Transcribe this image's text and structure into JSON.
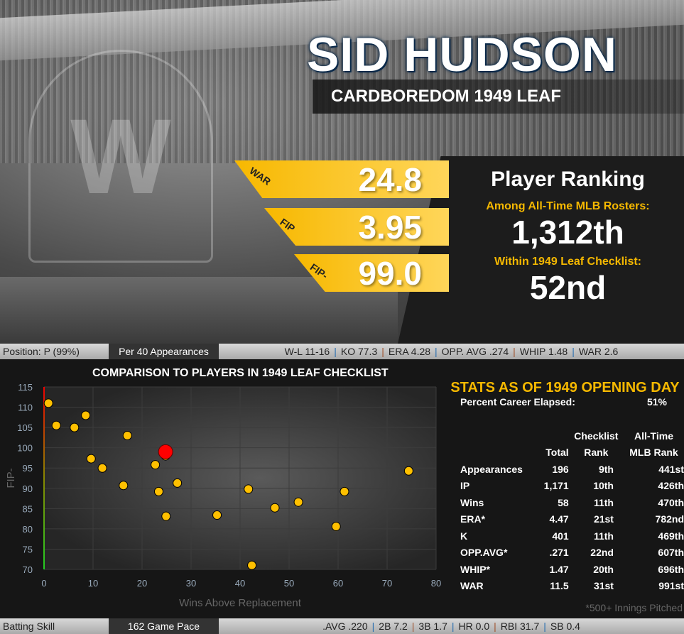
{
  "player": {
    "name": "SID HUDSON",
    "set": "CARDBOREDOM 1949 LEAF"
  },
  "key_stats": [
    {
      "label": "WAR",
      "value": "24.8"
    },
    {
      "label": "FIP",
      "value": "3.95"
    },
    {
      "label": "FIP-",
      "value": "99.0"
    }
  ],
  "ranking": {
    "title": "Player Ranking",
    "all_time_label": "Among All-Time MLB Rosters:",
    "all_time_value": "1,312th",
    "checklist_label": "Within 1949 Leaf Checklist:",
    "checklist_value": "52nd"
  },
  "pitching_bar": {
    "position": "Position: P (99%)",
    "mode": "Per 40 Appearances",
    "stats": [
      "W-L  11-16",
      "KO  77.3",
      "ERA  4.28",
      "OPP. AVG  .274",
      "WHIP  1.48",
      "WAR  2.6"
    ]
  },
  "batting_bar": {
    "label": "Batting Skill",
    "mode": "162 Game Pace",
    "stats": [
      ".AVG  .220",
      "2B  7.2",
      "3B  1.7",
      "HR  0.0",
      "RBI  31.7",
      "SB  0.4"
    ]
  },
  "chart_data": {
    "type": "scatter",
    "title": "COMPARISON TO PLAYERS IN 1949 LEAF CHECKLIST",
    "xlabel": "Wins Above Replacement",
    "ylabel": "FIP-",
    "xlim": [
      0,
      80
    ],
    "ylim": [
      70,
      115
    ],
    "xticks": [
      "0",
      "10",
      "20",
      "30",
      "40",
      "50",
      "60",
      "70",
      "80"
    ],
    "yticks": [
      "70",
      "75",
      "80",
      "85",
      "90",
      "95",
      "100",
      "105",
      "110",
      "115"
    ],
    "grid": true,
    "points": [
      [
        0.9,
        111
      ],
      [
        2.5,
        105.5
      ],
      [
        6.2,
        105
      ],
      [
        8.5,
        108
      ],
      [
        9.6,
        97.3
      ],
      [
        11.9,
        95
      ],
      [
        17,
        103
      ],
      [
        16.2,
        90.7
      ],
      [
        22.7,
        95.8
      ],
      [
        23.4,
        89.2
      ],
      [
        24.8,
        98
      ],
      [
        27.2,
        91.3
      ],
      [
        24.9,
        83.1
      ],
      [
        35.3,
        83.4
      ],
      [
        41.7,
        89.8
      ],
      [
        42.4,
        71
      ],
      [
        47.1,
        85.2
      ],
      [
        51.9,
        86.6
      ],
      [
        59.6,
        80.6
      ],
      [
        61.3,
        89.2
      ],
      [
        74.4,
        94.3
      ]
    ],
    "highlight": [
      24.8,
      99.0
    ],
    "point_color": "#ffc000",
    "highlight_color": "#ff0000"
  },
  "stats_table": {
    "title": "STATS AS OF 1949 OPENING DAY",
    "career_label": "Percent Career Elapsed:",
    "career_value": "51%",
    "headers": [
      [
        "",
        "",
        "Checklist",
        "All-Time"
      ],
      [
        "",
        "Total",
        "Rank",
        "MLB Rank"
      ]
    ],
    "rows": [
      [
        "Appearances",
        "196",
        "9th",
        "441st"
      ],
      [
        "IP",
        "1,171",
        "10th",
        "426th"
      ],
      [
        "Wins",
        "58",
        "11th",
        "470th"
      ],
      [
        "ERA*",
        "4.47",
        "21st",
        "782nd"
      ],
      [
        "K",
        "401",
        "11th",
        "469th"
      ],
      [
        "OPP.AVG*",
        ".271",
        "22nd",
        "607th"
      ],
      [
        "WHIP*",
        "1.47",
        "20th",
        "696th"
      ],
      [
        "WAR",
        "11.5",
        "31st",
        "991st"
      ]
    ],
    "footnote": "*500+ Innings Pitched"
  }
}
